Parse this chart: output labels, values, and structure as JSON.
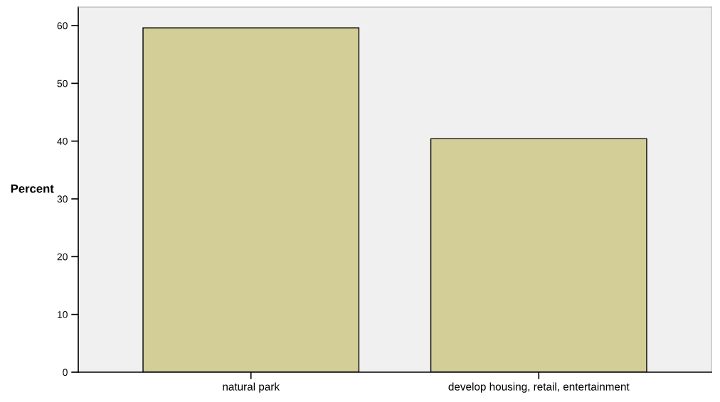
{
  "chart_data": {
    "type": "bar",
    "ylabel": "Percent",
    "categories": [
      "natural park",
      "develop housing, retail, entertainment"
    ],
    "values": [
      59.6,
      40.4
    ],
    "color": "#d3ce97",
    "ylim": [
      0,
      63.2
    ],
    "yticks": [
      0,
      10,
      20,
      30,
      40,
      50,
      60
    ],
    "grid": false
  }
}
